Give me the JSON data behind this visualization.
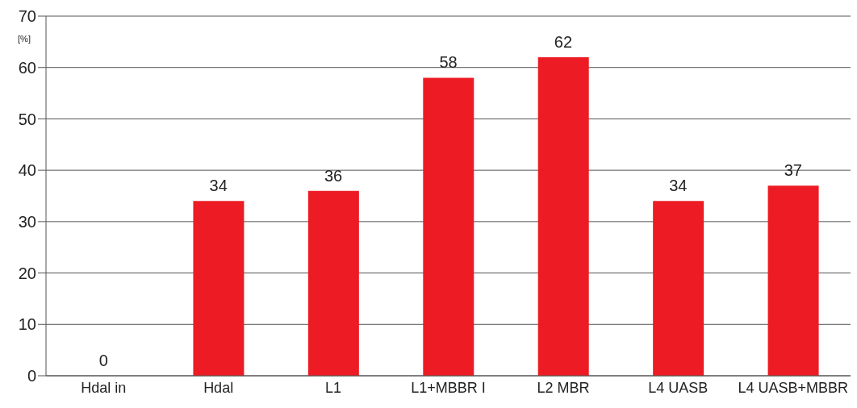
{
  "chart_data": {
    "type": "bar",
    "ylabel": "[%]",
    "categories": [
      "Hdal in",
      "Hdal",
      "L1",
      "L1+MBBR I",
      "L2 MBR",
      "L4 UASB",
      "L4 UASB+MBBR"
    ],
    "values": [
      0,
      34,
      36,
      58,
      62,
      34,
      37
    ],
    "color": "#ed1c24",
    "data_labels": true,
    "ylim": [
      0,
      70
    ],
    "yticks": [
      0,
      10,
      20,
      30,
      40,
      50,
      60,
      70
    ],
    "grid": "y"
  }
}
